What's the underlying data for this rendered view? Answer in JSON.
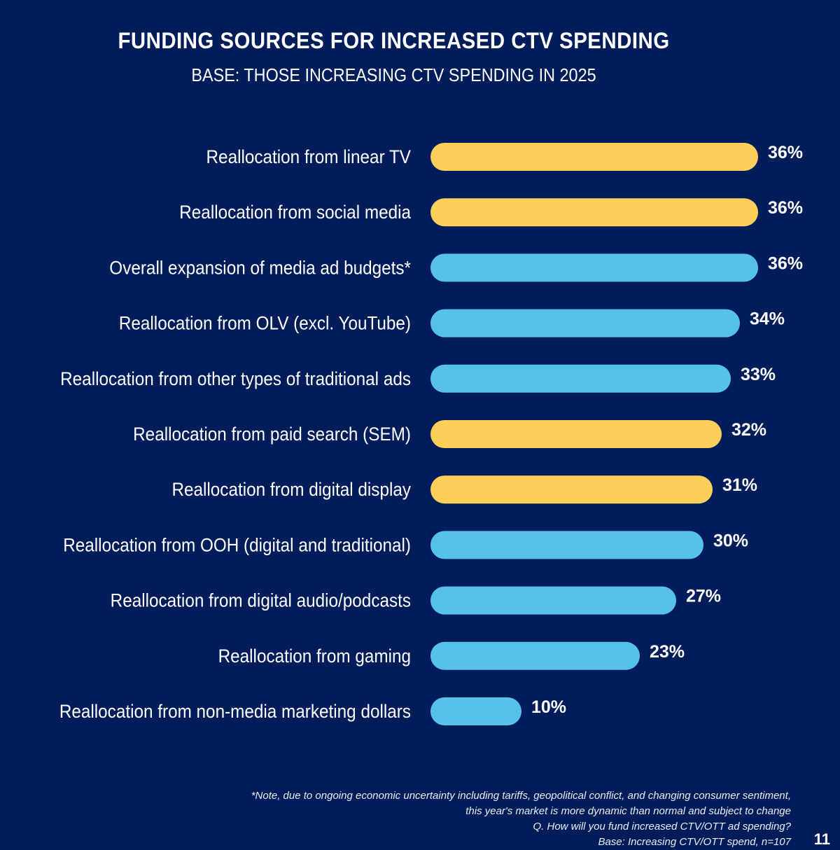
{
  "chart_data": {
    "type": "bar",
    "orientation": "horizontal",
    "title": "FUNDING SOURCES FOR INCREASED CTV SPENDING",
    "subtitle": "BASE: THOSE INCREASING CTV SPENDING IN 2025",
    "xlim": [
      0,
      40
    ],
    "grid": false,
    "categories": [
      "Reallocation from linear TV",
      "Reallocation from social media",
      "Overall expansion of media ad budgets*",
      "Reallocation from OLV (excl. YouTube)",
      "Reallocation from other types of traditional ads",
      "Reallocation from paid search (SEM)",
      "Reallocation from digital display",
      "Reallocation from OOH (digital and traditional)",
      "Reallocation from digital audio/podcasts",
      "Reallocation from gaming",
      "Reallocation from non-media marketing dollars"
    ],
    "values": [
      36,
      36,
      36,
      34,
      33,
      32,
      31,
      30,
      27,
      23,
      10
    ],
    "value_labels": [
      "36%",
      "36%",
      "36%",
      "34%",
      "33%",
      "32%",
      "31%",
      "30%",
      "27%",
      "23%",
      "10%"
    ],
    "bar_colors": [
      "#fccf5a",
      "#fccf5a",
      "#56c2ea",
      "#56c2ea",
      "#56c2ea",
      "#fccf5a",
      "#fccf5a",
      "#56c2ea",
      "#56c2ea",
      "#56c2ea",
      "#56c2ea"
    ]
  },
  "colors": {
    "background": "#031d5b",
    "highlight_bar": "#fccf5a",
    "default_bar": "#56c2ea",
    "text": "#ffffff"
  },
  "footnote": {
    "line1": "*Note, due to ongoing economic uncertainty including tariffs, geopolitical conflict, and changing consumer sentiment,",
    "line2": "this year's market is more dynamic than normal and subject to change",
    "line3": "Q. How will you fund increased CTV/OTT ad spending?",
    "line4": "Base: Increasing CTV/OTT spend, n=107"
  },
  "page_number": "11"
}
